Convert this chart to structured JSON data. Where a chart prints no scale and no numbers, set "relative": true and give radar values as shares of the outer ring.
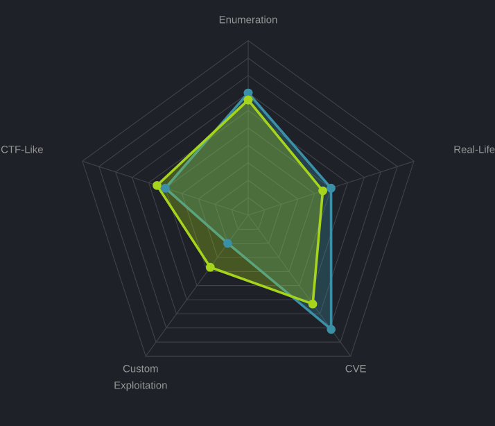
{
  "chart_data": {
    "type": "radar",
    "relative": true,
    "marker": "circle",
    "categories": [
      "Enumeration",
      "Real-Life",
      "CVE",
      "Custom Exploitation",
      "CTF-Like"
    ],
    "series": [
      {
        "color": "#3b8fa6",
        "values": [
          0.7,
          0.5,
          0.81,
          0.2,
          0.5
        ]
      },
      {
        "color": "#a6d41c",
        "values": [
          0.66,
          0.45,
          0.63,
          0.37,
          0.55
        ]
      }
    ]
  }
}
